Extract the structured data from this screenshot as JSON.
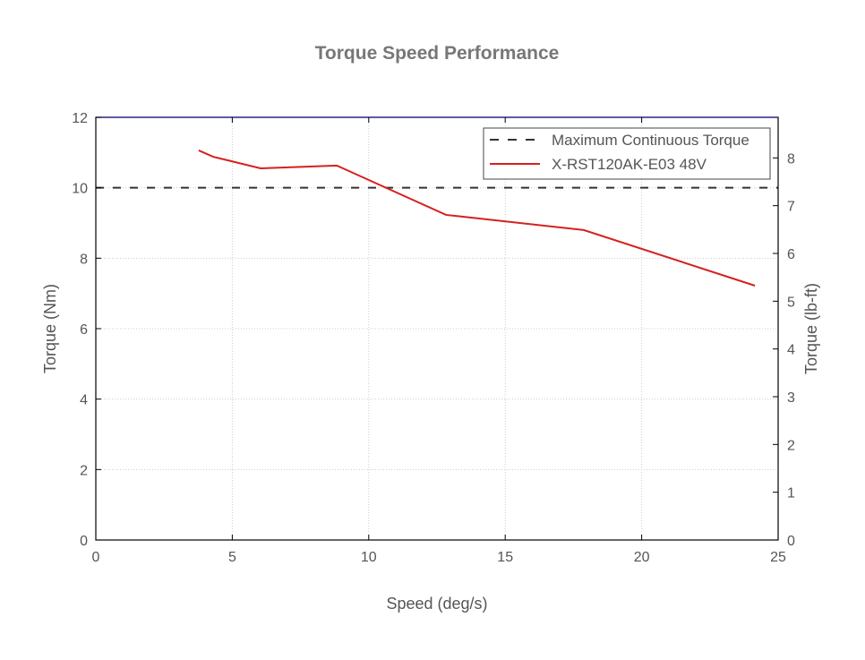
{
  "chart_data": {
    "type": "line",
    "title": "Torque Speed Performance",
    "xlabel": "Speed (deg/s)",
    "ylabel": "Torque (Nm)",
    "y2label": "Torque (lb-ft)",
    "xlim": [
      0,
      25
    ],
    "ylim": [
      0,
      12
    ],
    "y2lim": [
      0,
      8.85
    ],
    "xticks": [
      0,
      5,
      10,
      15,
      20,
      25
    ],
    "yticks": [
      0,
      2,
      4,
      6,
      8,
      10,
      12
    ],
    "y2ticks": [
      0,
      1,
      2,
      3,
      4,
      5,
      6,
      7,
      8
    ],
    "grid": true,
    "legend_position": "top-right",
    "series": [
      {
        "name": "Maximum Continuous Torque",
        "style": "dashed",
        "color": "#333333",
        "x": [
          0,
          25
        ],
        "y": [
          10,
          10
        ]
      },
      {
        "name": "X-RST120AK-E03 48V",
        "style": "solid",
        "color": "#d62020",
        "x": [
          3.77,
          4.3,
          6.04,
          8.83,
          12.83,
          17.88,
          24.15
        ],
        "y": [
          11.06,
          10.88,
          10.55,
          10.63,
          9.23,
          8.8,
          7.22
        ]
      }
    ]
  }
}
